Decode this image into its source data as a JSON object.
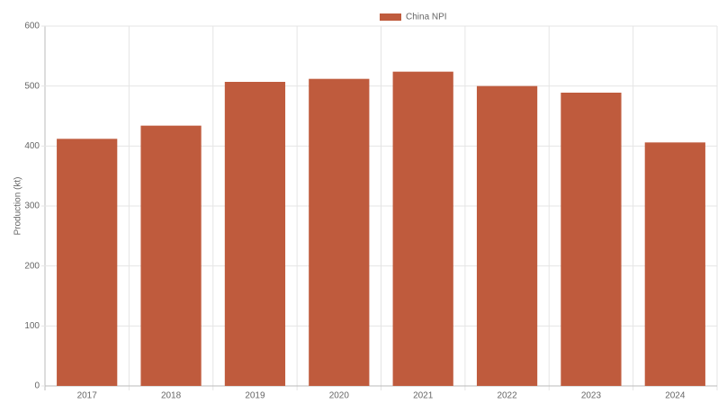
{
  "chart_data": {
    "type": "bar",
    "y_label": "Production (kt)",
    "categories": [
      "2017",
      "2018",
      "2019",
      "2020",
      "2021",
      "2022",
      "2023",
      "2024"
    ],
    "series": [
      {
        "name": "China NPI",
        "color": "#bf5b3d",
        "values": [
          412,
          434,
          507,
          512,
          524,
          500,
          489,
          406
        ]
      }
    ],
    "ylim": [
      0,
      600
    ],
    "yticks": [
      0,
      100,
      200,
      300,
      400,
      500,
      600
    ],
    "grid": true,
    "legend": "top"
  }
}
